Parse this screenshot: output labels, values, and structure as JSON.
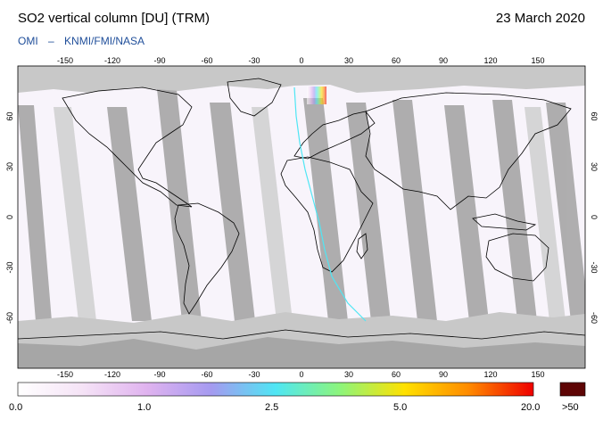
{
  "header": {
    "title": "SO2 vertical column [DU] (TRM)",
    "date": "23 March 2020",
    "credit_left": "OMI",
    "credit_sep": "–",
    "credit_right": "KNMI/FMI/NASA"
  },
  "map": {
    "lon_ticks": [
      "-150",
      "-120",
      "-90",
      "-60",
      "-30",
      "0",
      "30",
      "60",
      "90",
      "120",
      "150"
    ],
    "lat_ticks": [
      "60",
      "30",
      "0",
      "-30",
      "-60"
    ],
    "colors": {
      "no_data": "#c8c8c8",
      "polar_night": "#c8c8c8",
      "swath_gap": "#a6a6a6",
      "background_value": "#f8f4fb",
      "coast": "#000000"
    }
  },
  "colorbar": {
    "labels": [
      "0.0",
      "1.0",
      "2.5",
      "5.0",
      "20.0",
      ">50"
    ],
    "gradient_colors": [
      "#ffffff",
      "#f5e3f6",
      "#e0b3ef",
      "#a59af0",
      "#4fe6f4",
      "#8df57b",
      "#ffe100",
      "#ff8a00",
      "#ef0000"
    ],
    "overflow_color": "#5e0505"
  }
}
